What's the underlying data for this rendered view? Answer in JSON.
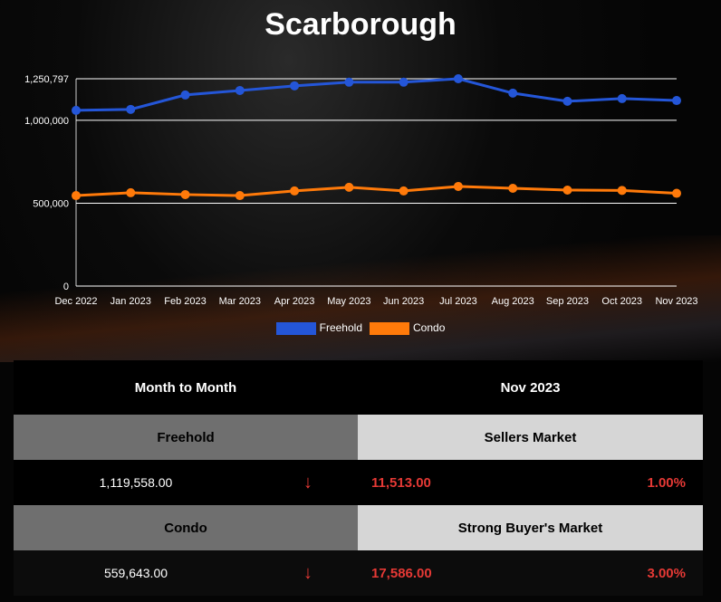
{
  "title": "Scarborough",
  "chart_data": {
    "type": "line",
    "title": "Scarborough",
    "categories": [
      "Dec 2022",
      "Jan 2023",
      "Feb 2023",
      "Mar 2023",
      "Apr 2023",
      "May 2023",
      "Jun 2023",
      "Jul 2023",
      "Aug 2023",
      "Sep 2023",
      "Oct 2023",
      "Nov 2023"
    ],
    "y_ticks": [
      "0",
      "500,000",
      "1,000,000",
      "1,250,797"
    ],
    "y_tick_values": [
      0,
      500000,
      1000000,
      1250797
    ],
    "ylim": [
      0,
      1250797
    ],
    "grid": true,
    "legend_placement": "bottom",
    "series": [
      {
        "name": "Freehold",
        "color": "#2456d8",
        "values": [
          1060000,
          1066000,
          1153000,
          1180000,
          1208000,
          1230000,
          1230000,
          1250797,
          1164000,
          1115000,
          1131071,
          1119558
        ]
      },
      {
        "name": "Condo",
        "color": "#ff7a0a",
        "values": [
          546000,
          563000,
          552000,
          546000,
          574000,
          596000,
          574000,
          601000,
          590000,
          579000,
          577229,
          559643
        ]
      }
    ]
  },
  "table": {
    "header_left": "Month to Month",
    "header_right": "Nov 2023",
    "rows": [
      {
        "label": "Freehold",
        "market": "Sellers Market",
        "value": "1,119,558.00",
        "arrow": "↓",
        "change": "11,513.00",
        "percent": "1.00%"
      },
      {
        "label": "Condo",
        "market": "Strong Buyer's Market",
        "value": "559,643.00",
        "arrow": "↓",
        "change": "17,586.00",
        "percent": "3.00%"
      }
    ]
  }
}
